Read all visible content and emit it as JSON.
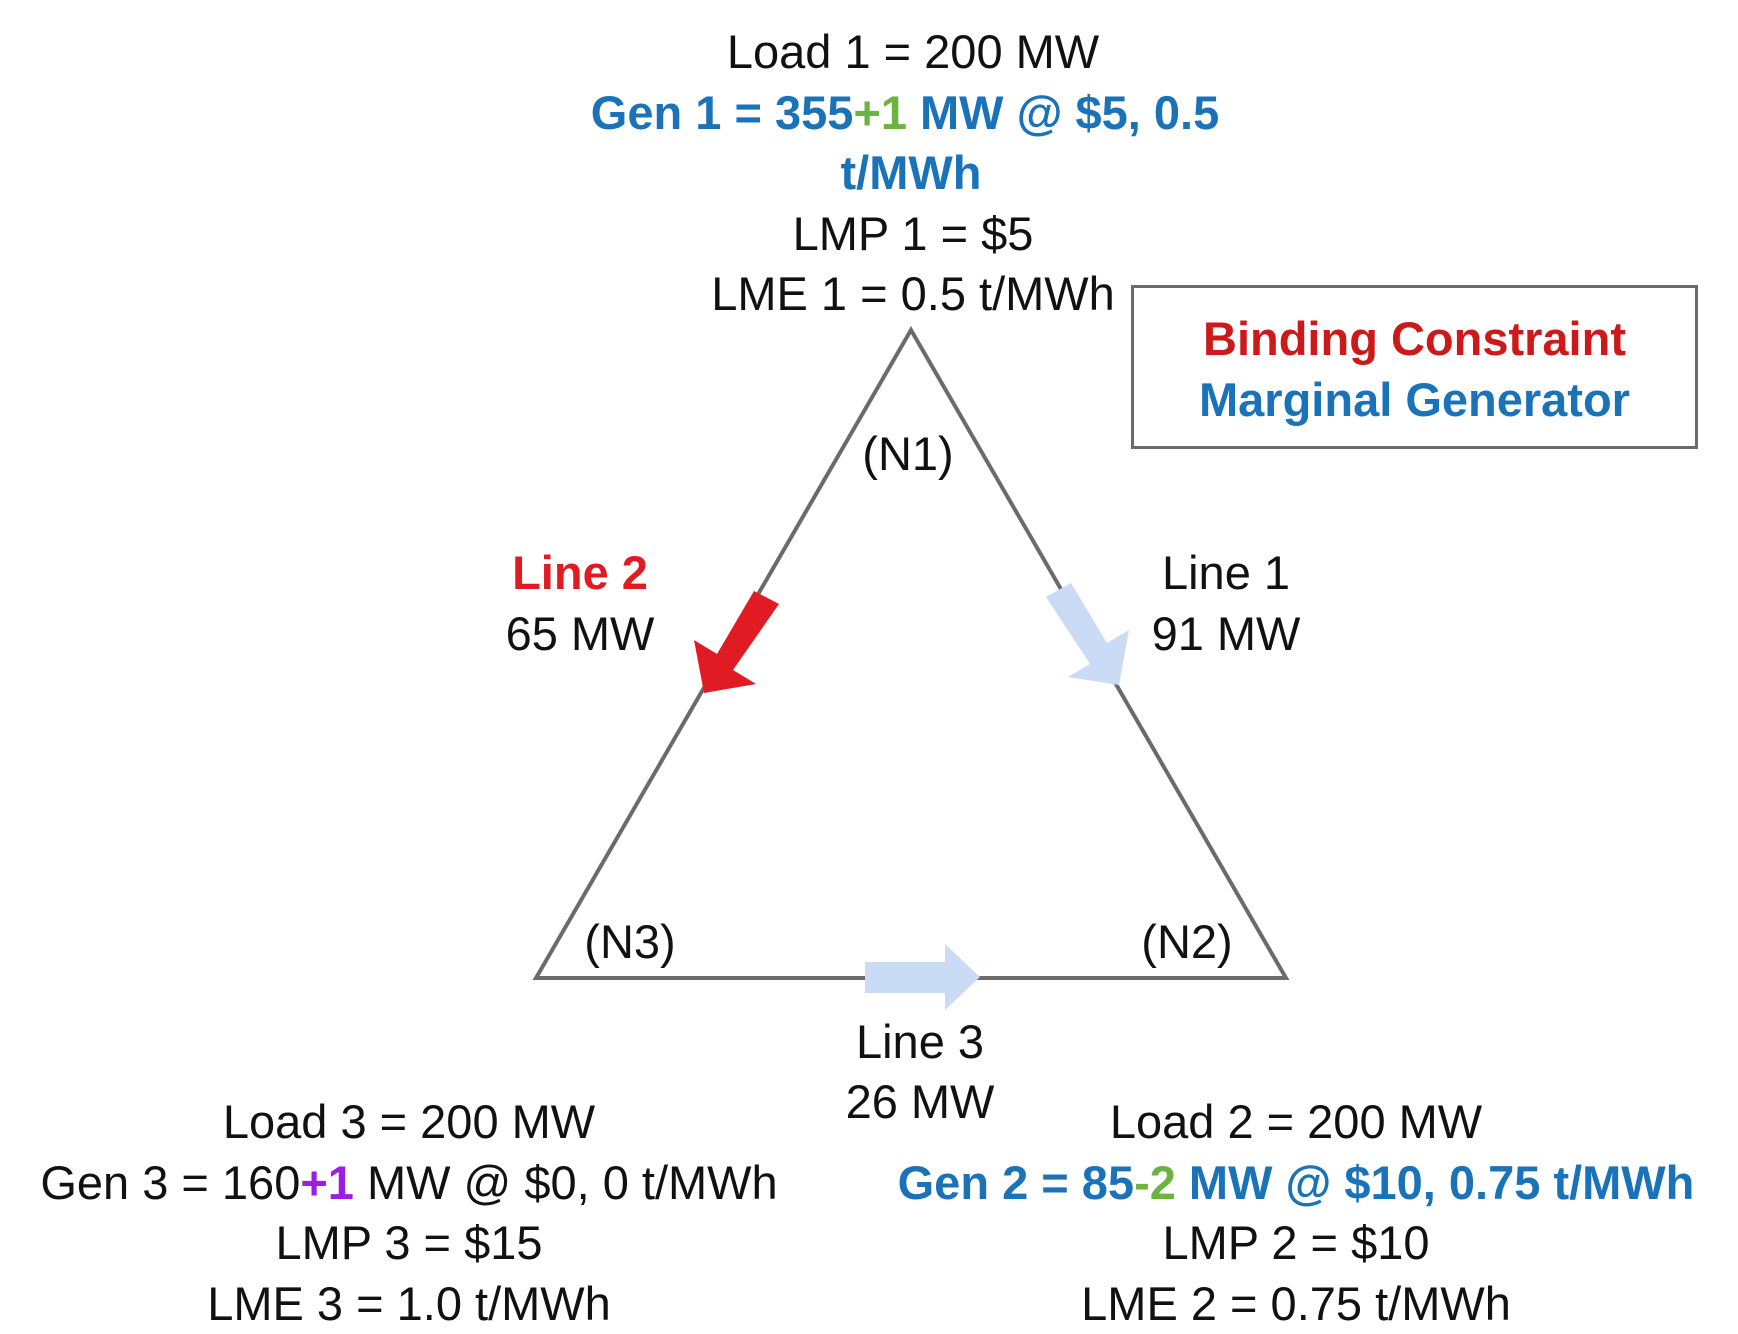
{
  "nodes": {
    "n1": {
      "label": "(N1)",
      "load": "Load 1 = 200 MW",
      "gen_prefix": "Gen 1 = 355",
      "gen_delta": "+1",
      "gen_suffix": " MW @ $5, 0.5",
      "gen_line2": "t/MWh",
      "lmp": "LMP 1 =  $5",
      "lme": "LME 1 = 0.5 t/MWh"
    },
    "n2": {
      "label": "(N2)",
      "load": "Load 2 = 200 MW",
      "gen_prefix": "Gen 2 = 85",
      "gen_delta": "-2",
      "gen_suffix": " MW @ $10, 0.75 t/MWh",
      "lmp": "LMP 2 = $10",
      "lme": "LME 2 = 0.75 t/MWh"
    },
    "n3": {
      "label": "(N3)",
      "load": "Load 3 = 200 MW",
      "gen_prefix": "Gen 3 = 160",
      "gen_delta": "+1",
      "gen_suffix": " MW @ $0, 0 t/MWh",
      "lmp": "LMP 3 = $15",
      "lme": "LME 3 = 1.0 t/MWh"
    }
  },
  "lines": {
    "line1": {
      "name": "Line 1",
      "flow": "91 MW"
    },
    "line2": {
      "name": "Line 2",
      "flow": "65 MW"
    },
    "line3": {
      "name": "Line 3",
      "flow": "26 MW"
    }
  },
  "legend": {
    "binding": "Binding Constraint",
    "marginal": "Marginal Generator"
  },
  "colors": {
    "edge": "#6b6b6b",
    "binding_arrow": "#e01b24",
    "flow_arrow": "#c9dbf5",
    "marginal_text": "#1a73b8",
    "binding_text": "#cc1a1a",
    "delta_green": "#6db33f",
    "delta_purple": "#9b1fe0"
  }
}
